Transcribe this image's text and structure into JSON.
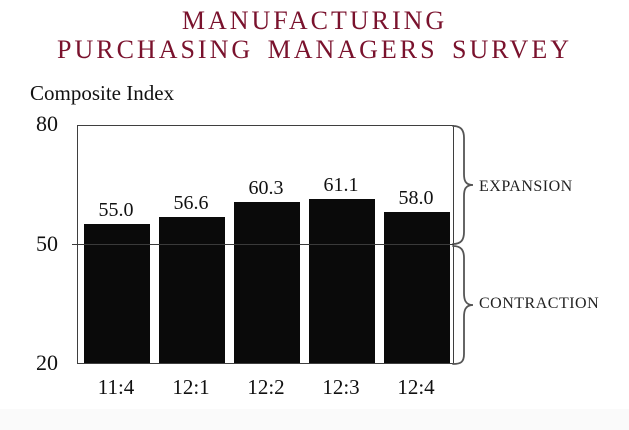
{
  "title": {
    "line1": "MANUFACTURING",
    "line2": "PURCHASING MANAGERS SURVEY"
  },
  "chart_data": {
    "type": "bar",
    "title": "Composite Index",
    "categories": [
      "11:4",
      "12:1",
      "12:2",
      "12:3",
      "12:4"
    ],
    "values": [
      55.0,
      56.6,
      60.3,
      61.1,
      58.0
    ],
    "value_labels": [
      "55.0",
      "56.6",
      "60.3",
      "61.1",
      "58.0"
    ],
    "xlabel": "",
    "ylabel": "",
    "ylim": [
      20,
      80
    ],
    "yticks": [
      80,
      50,
      20
    ],
    "reference_line": 50,
    "grid": false,
    "legend_position": "none",
    "annotations": [
      {
        "label": "EXPANSION",
        "range": [
          50,
          80
        ],
        "side": "right"
      },
      {
        "label": "CONTRACTION",
        "range": [
          20,
          50
        ],
        "side": "right"
      }
    ]
  },
  "colors": {
    "title_text": "#7a122d",
    "bar_fill": "#0a0a0a",
    "frame_stroke": "#3f3f3f",
    "brace_stroke": "#555555",
    "text": "#111111"
  }
}
